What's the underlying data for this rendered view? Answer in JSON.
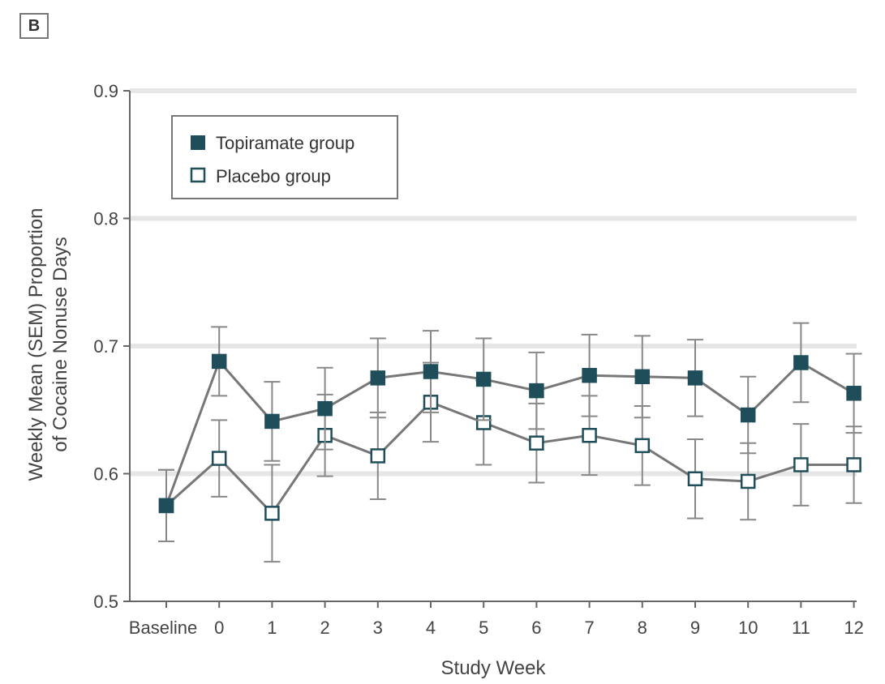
{
  "panel": {
    "label": "B"
  },
  "chart_data": {
    "type": "line",
    "xlabel": "Study Week",
    "ylabel_line1": "Weekly Mean (SEM) Proportion",
    "ylabel_line2": "of Cocaine Nonuse Days",
    "categories": [
      "Baseline",
      "0",
      "1",
      "2",
      "3",
      "4",
      "5",
      "6",
      "7",
      "8",
      "9",
      "10",
      "11",
      "12"
    ],
    "ylim": [
      0.5,
      0.9
    ],
    "yticks": [
      0.5,
      0.6,
      0.7,
      0.8,
      0.9
    ],
    "ytick_labels": [
      "0.5",
      "0.6",
      "0.7",
      "0.8",
      "0.9"
    ],
    "grid": "horizontal",
    "legend": {
      "placement": "top-left"
    },
    "series": [
      {
        "name": "Topiramate group",
        "marker": "filled-square",
        "color": "#1f4e5a",
        "values": [
          0.575,
          0.688,
          0.641,
          0.651,
          0.675,
          0.68,
          0.674,
          0.665,
          0.677,
          0.676,
          0.675,
          0.646,
          0.687,
          0.663
        ],
        "sem": [
          0.028,
          0.027,
          0.031,
          0.032,
          0.031,
          0.032,
          0.032,
          0.03,
          0.032,
          0.032,
          0.03,
          0.03,
          0.031,
          0.031
        ]
      },
      {
        "name": "Placebo group",
        "marker": "open-square",
        "color": "#1f4e5a",
        "values": [
          0.575,
          0.612,
          0.569,
          0.63,
          0.614,
          0.656,
          0.64,
          0.624,
          0.63,
          0.622,
          0.596,
          0.594,
          0.607,
          0.607
        ],
        "sem": [
          0.028,
          0.03,
          0.038,
          0.032,
          0.034,
          0.031,
          0.033,
          0.031,
          0.031,
          0.031,
          0.031,
          0.03,
          0.032,
          0.03
        ]
      }
    ]
  }
}
